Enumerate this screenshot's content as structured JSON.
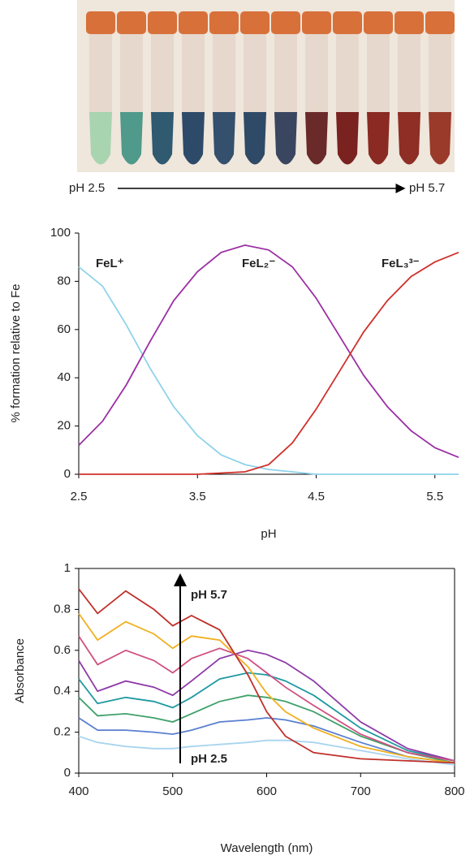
{
  "photo": {
    "left_label": "pH 2.5",
    "right_label": "pH 5.7"
  },
  "chart_data": [
    {
      "type": "line",
      "xlabel": "pH",
      "ylabel": "% formation relative to Fe",
      "x": [
        2.5,
        2.7,
        2.9,
        3.1,
        3.3,
        3.5,
        3.7,
        3.9,
        4.1,
        4.3,
        4.5,
        4.7,
        4.9,
        5.1,
        5.3,
        5.5,
        5.7
      ],
      "xlim": [
        2.5,
        5.7
      ],
      "xticks": [
        2.5,
        3.5,
        4.5,
        5.5
      ],
      "ylim": [
        0,
        100
      ],
      "yticks": [
        0,
        20,
        40,
        60,
        80,
        100
      ],
      "grid": false,
      "series": [
        {
          "name": "FeL⁺",
          "color": "#8fd3ea",
          "values": [
            86,
            78,
            62,
            44,
            28,
            16,
            8,
            4,
            2,
            1,
            0,
            0,
            0,
            0,
            0,
            0,
            0
          ]
        },
        {
          "name": "FeL₂⁻",
          "color": "#9b2fa4",
          "values": [
            12,
            22,
            37,
            55,
            72,
            84,
            92,
            95,
            93,
            86,
            73,
            57,
            41,
            28,
            18,
            11,
            7
          ]
        },
        {
          "name": "FeL₃³⁻",
          "color": "#d0302a",
          "values": [
            0,
            0,
            0,
            0,
            0,
            0,
            0.5,
            1,
            4,
            13,
            27,
            43,
            59,
            72,
            82,
            88,
            92
          ]
        }
      ]
    },
    {
      "type": "line",
      "xlabel": "Wavelength (nm)",
      "ylabel": "Absorbance",
      "x": [
        400,
        420,
        450,
        480,
        500,
        520,
        550,
        580,
        600,
        620,
        650,
        700,
        750,
        800
      ],
      "xlim": [
        400,
        800
      ],
      "xticks": [
        400,
        500,
        600,
        700,
        800
      ],
      "ylim": [
        0,
        1
      ],
      "yticks": [
        0,
        0.2,
        0.4,
        0.6,
        0.8,
        1
      ],
      "grid": false,
      "annotations": [
        "pH 5.7",
        "pH 2.5"
      ],
      "series": [
        {
          "color": "#a9d4ee",
          "values": [
            0.18,
            0.15,
            0.13,
            0.12,
            0.12,
            0.13,
            0.14,
            0.15,
            0.16,
            0.16,
            0.15,
            0.11,
            0.07,
            0.04
          ]
        },
        {
          "color": "#5a7fd0",
          "values": [
            0.27,
            0.21,
            0.21,
            0.2,
            0.19,
            0.21,
            0.25,
            0.26,
            0.27,
            0.26,
            0.23,
            0.15,
            0.08,
            0.05
          ]
        },
        {
          "color": "#3fa06a",
          "values": [
            0.37,
            0.28,
            0.29,
            0.27,
            0.25,
            0.29,
            0.35,
            0.38,
            0.37,
            0.35,
            0.3,
            0.18,
            0.1,
            0.05
          ]
        },
        {
          "color": "#1f9aa0",
          "values": [
            0.46,
            0.34,
            0.37,
            0.35,
            0.32,
            0.37,
            0.46,
            0.49,
            0.48,
            0.45,
            0.38,
            0.22,
            0.11,
            0.06
          ]
        },
        {
          "color": "#8e3aa8",
          "values": [
            0.55,
            0.4,
            0.45,
            0.42,
            0.38,
            0.45,
            0.56,
            0.6,
            0.58,
            0.54,
            0.45,
            0.25,
            0.12,
            0.06
          ]
        },
        {
          "color": "#d05080",
          "values": [
            0.67,
            0.53,
            0.6,
            0.55,
            0.49,
            0.56,
            0.61,
            0.56,
            0.49,
            0.42,
            0.33,
            0.19,
            0.1,
            0.06
          ]
        },
        {
          "color": "#f0b020",
          "values": [
            0.78,
            0.65,
            0.74,
            0.68,
            0.61,
            0.67,
            0.65,
            0.52,
            0.39,
            0.3,
            0.22,
            0.13,
            0.08,
            0.05
          ]
        },
        {
          "color": "#c0302a",
          "values": [
            0.9,
            0.78,
            0.89,
            0.8,
            0.72,
            0.77,
            0.7,
            0.48,
            0.3,
            0.18,
            0.1,
            0.07,
            0.06,
            0.05
          ]
        }
      ]
    }
  ]
}
